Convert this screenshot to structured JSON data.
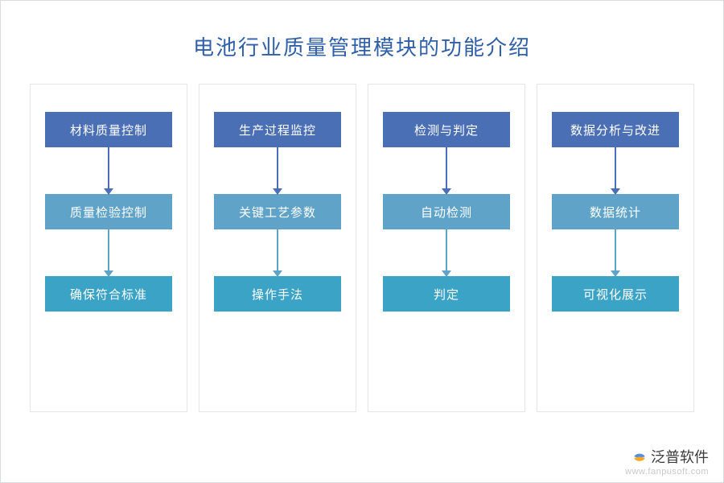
{
  "title": "电池行业质量管理模块的功能介绍",
  "title_color": "#2f5fa8",
  "title_fontsize": 26,
  "background": "#ffffff",
  "frame_border": "#d8dce0",
  "column_border": "#e3e6ea",
  "box_colors": {
    "level1": "#4b6fb4",
    "level2": "#5fa3c9",
    "level3": "#3ba3c6"
  },
  "arrow_colors": {
    "after_level1": "#4b6fb4",
    "after_level2": "#5fa3c9"
  },
  "arrow_height": 58,
  "columns": [
    {
      "items": [
        "材料质量控制",
        "质量检验控制",
        "确保符合标准"
      ]
    },
    {
      "items": [
        "生产过程监控",
        "关键工艺参数",
        "操作手法"
      ]
    },
    {
      "items": [
        "检测与判定",
        "自动检测",
        "判定"
      ]
    },
    {
      "items": [
        "数据分析与改进",
        "数据统计",
        "可视化展示"
      ]
    }
  ],
  "brand": {
    "name": "泛普软件",
    "url": "www.fanpusoft.com",
    "name_color": "#3a3a3a",
    "url_color": "#c9c9c9",
    "icon_colors": {
      "top": "#5a8fd6",
      "bottom": "#f5a623"
    }
  }
}
